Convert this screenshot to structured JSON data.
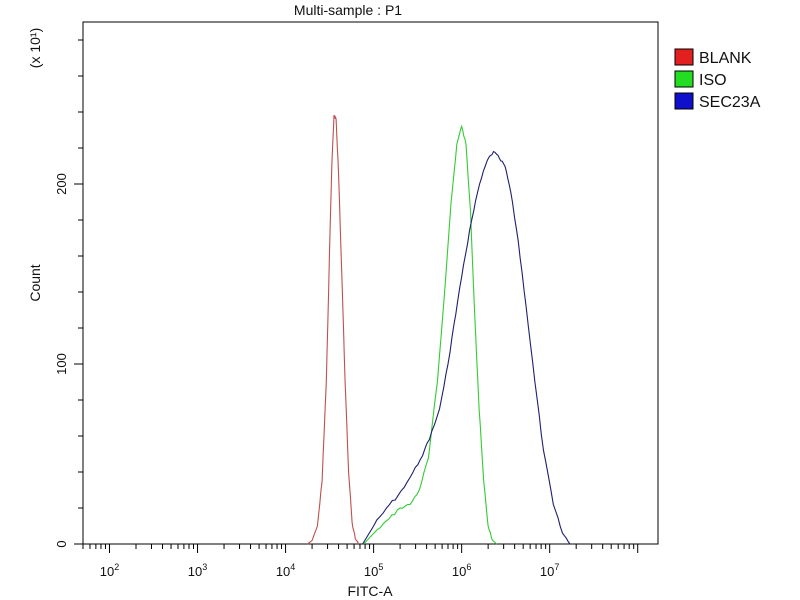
{
  "chart_data": {
    "type": "line",
    "title": "Multi-sample : P1",
    "xlabel": "FITC-A",
    "ylabel": "Count",
    "y_multiplier_label": "(x 10¹)",
    "x_scale": "log",
    "xlim": [
      50,
      170000000
    ],
    "ylim": [
      0,
      290
    ],
    "grid": false,
    "legend_position": "top-right",
    "x_ticks": [
      {
        "value": 100,
        "base": "10",
        "exp": "2"
      },
      {
        "value": 1000,
        "base": "10",
        "exp": "3"
      },
      {
        "value": 10000,
        "base": "10",
        "exp": "4"
      },
      {
        "value": 100000,
        "base": "10",
        "exp": "5"
      },
      {
        "value": 1000000,
        "base": "10",
        "exp": "6"
      },
      {
        "value": 10000000,
        "base": "10",
        "exp": "7"
      }
    ],
    "y_ticks": [
      {
        "value": 0,
        "label": "0"
      },
      {
        "value": 100,
        "label": "100"
      },
      {
        "value": 200,
        "label": "200"
      }
    ],
    "series": [
      {
        "name": "BLANK",
        "color": "#c0504d",
        "legend_color": "#e32020",
        "points": [
          [
            17800,
            0
          ],
          [
            20000,
            2
          ],
          [
            23000,
            10
          ],
          [
            26000,
            35
          ],
          [
            29000,
            90
          ],
          [
            31500,
            160
          ],
          [
            33500,
            210
          ],
          [
            35500,
            238
          ],
          [
            37500,
            236
          ],
          [
            40000,
            205
          ],
          [
            43500,
            150
          ],
          [
            47500,
            90
          ],
          [
            52000,
            40
          ],
          [
            57000,
            12
          ],
          [
            62000,
            3
          ],
          [
            67000,
            0
          ]
        ]
      },
      {
        "name": "ISO",
        "color": "#33cc33",
        "legend_color": "#22dd22",
        "points": [
          [
            77000,
            0
          ],
          [
            110000,
            8
          ],
          [
            150000,
            14
          ],
          [
            200000,
            20
          ],
          [
            260000,
            22
          ],
          [
            330000,
            30
          ],
          [
            420000,
            48
          ],
          [
            530000,
            90
          ],
          [
            640000,
            140
          ],
          [
            760000,
            190
          ],
          [
            880000,
            222
          ],
          [
            1000000,
            232
          ],
          [
            1120000,
            222
          ],
          [
            1260000,
            185
          ],
          [
            1400000,
            130
          ],
          [
            1580000,
            75
          ],
          [
            1780000,
            35
          ],
          [
            2000000,
            10
          ],
          [
            2250000,
            2
          ],
          [
            2500000,
            0
          ]
        ]
      },
      {
        "name": "SEC23A",
        "color": "#1f1f6e",
        "legend_color": "#1010cc",
        "points": [
          [
            75000,
            0
          ],
          [
            100000,
            10
          ],
          [
            140000,
            20
          ],
          [
            190000,
            27
          ],
          [
            260000,
            37
          ],
          [
            340000,
            47
          ],
          [
            430000,
            58
          ],
          [
            560000,
            75
          ],
          [
            700000,
            100
          ],
          [
            860000,
            128
          ],
          [
            1050000,
            155
          ],
          [
            1300000,
            180
          ],
          [
            1600000,
            200
          ],
          [
            1950000,
            213
          ],
          [
            2300000,
            218
          ],
          [
            2700000,
            214
          ],
          [
            3100000,
            210
          ],
          [
            3600000,
            196
          ],
          [
            4400000,
            168
          ],
          [
            5400000,
            132
          ],
          [
            6800000,
            90
          ],
          [
            8500000,
            52
          ],
          [
            11000000,
            22
          ],
          [
            14000000,
            6
          ],
          [
            17000000,
            0
          ]
        ]
      }
    ]
  }
}
